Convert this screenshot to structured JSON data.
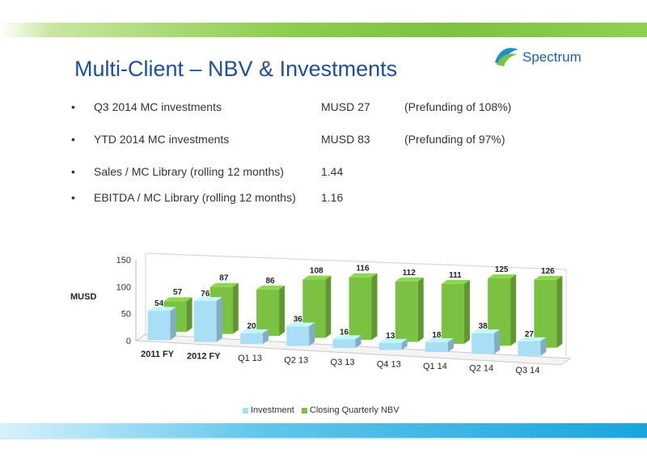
{
  "title": "Multi-Client – NBV & Investments",
  "logo": {
    "text": "Spectrum"
  },
  "bullets": [
    {
      "label": "Q3 2014 MC investments",
      "value": "MUSD 27",
      "note": "(Prefunding of 108%)"
    },
    {
      "label": "YTD 2014 MC investments",
      "value": "MUSD 83",
      "note": "(Prefunding of 97%)"
    },
    {
      "label": "Sales / MC Library (rolling 12 months)",
      "value": "1.44",
      "note": ""
    },
    {
      "label": "EBITDA / MC Library (rolling 12 months)",
      "value": "1.16",
      "note": ""
    }
  ],
  "colors": {
    "investment": "#a9def7",
    "nbv": "#7cc242",
    "title": "#1f4e9a"
  },
  "chart_data": {
    "type": "bar",
    "title": "",
    "ylabel": "MUSD",
    "xlabel": "",
    "ylim": [
      0,
      150
    ],
    "yticks": [
      0,
      50,
      100,
      150
    ],
    "categories": [
      "2011 FY",
      "2012 FY",
      "Q1 13",
      "Q2 13",
      "Q3 13",
      "Q4 13",
      "Q1 14",
      "Q2 14",
      "Q3 14"
    ],
    "series": [
      {
        "name": "Investment",
        "values": [
          54,
          76,
          20,
          36,
          16,
          13,
          18,
          38,
          27
        ]
      },
      {
        "name": "Closing Quarterly NBV",
        "values": [
          57,
          87,
          86,
          108,
          116,
          112,
          111,
          125,
          126
        ]
      }
    ],
    "legend": "bottom"
  }
}
